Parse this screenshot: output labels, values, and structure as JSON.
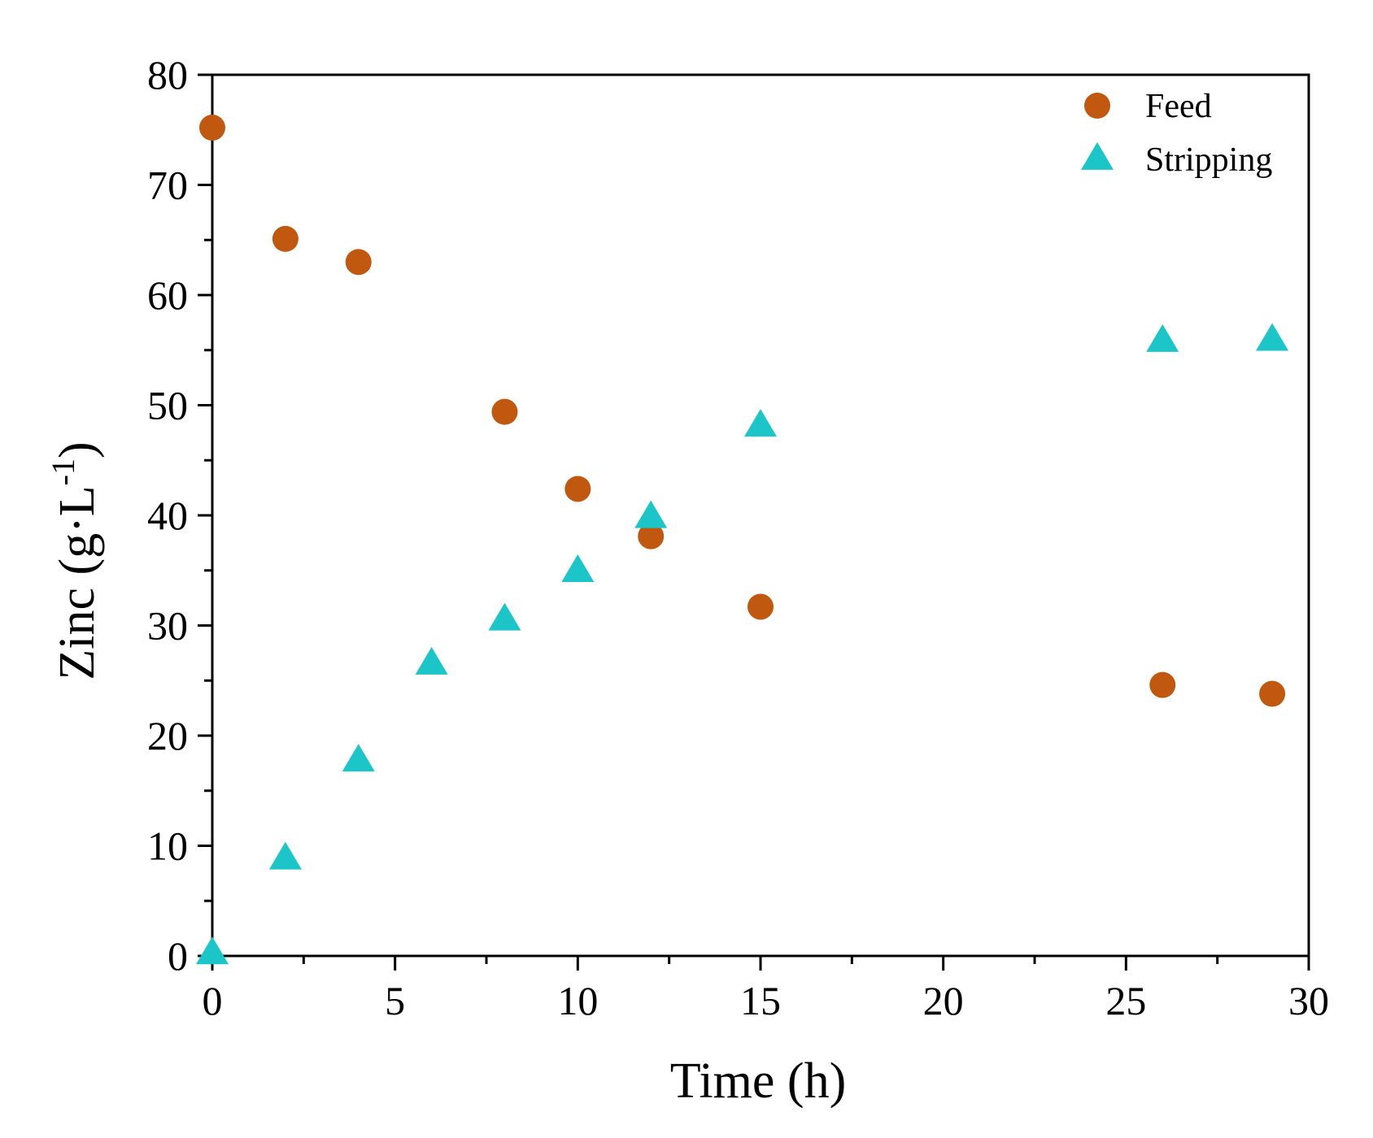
{
  "chart_data": {
    "type": "scatter",
    "title": "",
    "xlabel": "Time (h)",
    "ylabel_main": "Zinc (g·L",
    "ylabel_sup": "-1",
    "ylabel_close": ")",
    "xlim": [
      0,
      30
    ],
    "ylim": [
      0,
      80
    ],
    "xticks": [
      0,
      5,
      10,
      15,
      20,
      25,
      30
    ],
    "yticks": [
      0,
      10,
      20,
      30,
      40,
      50,
      60,
      70,
      80
    ],
    "xtick_labels": [
      "0",
      "5",
      "10",
      "15",
      "20",
      "25",
      "30"
    ],
    "ytick_labels": [
      "0",
      "10",
      "20",
      "30",
      "40",
      "50",
      "60",
      "70",
      "80"
    ],
    "grid": false,
    "legend_position": "top-right",
    "series": [
      {
        "name": "Feed",
        "marker": "circle",
        "color": "#C0580F",
        "x": [
          0,
          2,
          4,
          8,
          10,
          12,
          15,
          26,
          29
        ],
        "y": [
          75.2,
          65.1,
          63.0,
          49.4,
          42.4,
          38.1,
          31.7,
          24.6,
          23.8
        ]
      },
      {
        "name": "Stripping",
        "marker": "triangle",
        "color": "#1CC5C8",
        "x": [
          0,
          2,
          4,
          6,
          8,
          10,
          12,
          15,
          26,
          29
        ],
        "y": [
          0.2,
          8.8,
          17.7,
          26.5,
          30.5,
          34.9,
          39.8,
          48.1,
          55.8,
          55.9
        ]
      }
    ]
  }
}
